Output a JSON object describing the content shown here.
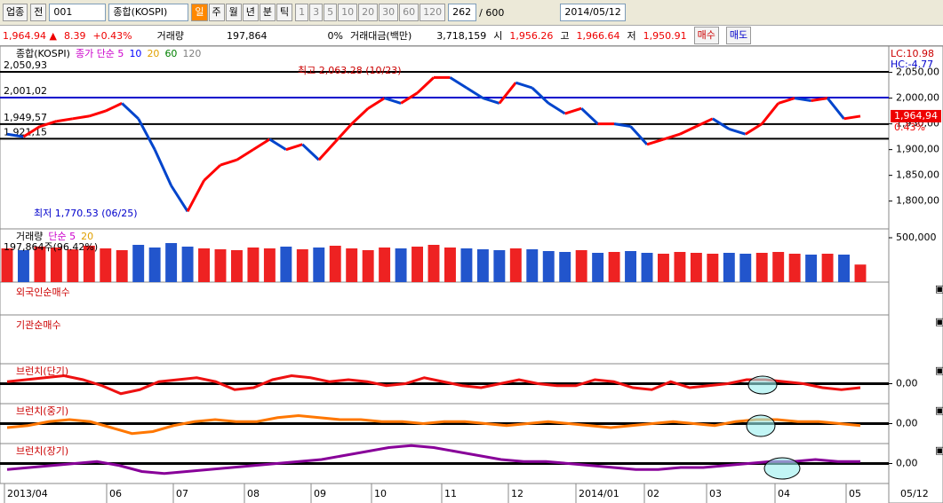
{
  "toolbar": {
    "market": "업종",
    "all": "전",
    "code": "001",
    "name": "종합(KOSPI)",
    "periods": [
      "일",
      "주",
      "월",
      "년",
      "분",
      "틱"
    ],
    "intervals": [
      "1",
      "3",
      "5",
      "10",
      "20",
      "30",
      "60",
      "120"
    ],
    "count": "262",
    "max": "/ 600",
    "date": "2014/05/12"
  },
  "quote": {
    "price": "1,964.94 ▲",
    "change": "8.39",
    "rate": "+0.43%",
    "volume_label": "거래량",
    "volume": "197,864",
    "volume_rate": "0%",
    "amount_label": "거래대금(백만)",
    "amount": "3,718,159",
    "open_label": "시",
    "open": "1,956.26",
    "high_label": "고",
    "high": "1,966.64",
    "low_label": "저",
    "low": "1,950.91",
    "buy": "매수",
    "sell": "매도"
  },
  "date_axis": [
    "2013/04",
    "06",
    "07",
    "08",
    "09",
    "10",
    "11",
    "12",
    "2014/01",
    "02",
    "03",
    "04",
    "05",
    "05/12"
  ],
  "chart_data": [
    {
      "type": "line",
      "title": "종합(KOSPI)",
      "legend": [
        {
          "label": "종가 단순 5",
          "color": "#cc00cc"
        },
        {
          "label": "10",
          "color": "#0000ff"
        },
        {
          "label": "20",
          "color": "#e0a000"
        },
        {
          "label": "60",
          "color": "#008000"
        },
        {
          "label": "120",
          "color": "#808080"
        }
      ],
      "lc": "LC:10.98",
      "hc": "HC:-4.77",
      "last_label": "1,964,94",
      "last_rate": "0.43%",
      "high_note": "최고 2,063.28 (10/23)",
      "low_note": "최저 1,770.53 (06/25)",
      "levels": [
        {
          "value": 2050.93,
          "label": "2,050,93",
          "color": "#000000"
        },
        {
          "value": 2001.02,
          "label": "2,001,02",
          "color": "#0000cc"
        },
        {
          "value": 1949.57,
          "label": "1,949,57",
          "color": "#000000"
        },
        {
          "value": 1921.15,
          "label": "1,921,15",
          "color": "#000000"
        }
      ],
      "values": [
        1930,
        1925,
        1945,
        1955,
        1960,
        1965,
        1975,
        1990,
        1960,
        1900,
        1830,
        1780,
        1840,
        1870,
        1880,
        1900,
        1920,
        1900,
        1910,
        1880,
        1915,
        1950,
        1980,
        2000,
        1990,
        2010,
        2040,
        2040,
        2020,
        2000,
        1990,
        2030,
        2020,
        1990,
        1970,
        1980,
        1950,
        1950,
        1945,
        1910,
        1920,
        1930,
        1945,
        1960,
        1940,
        1930,
        1950,
        1990,
        2000,
        1995,
        2000,
        1960,
        1964.94
      ],
      "ylim": [
        1746,
        2101
      ],
      "yticks": [
        {
          "value": 2050,
          "label": "2,050,00"
        },
        {
          "value": 2000,
          "label": "2,000,00"
        },
        {
          "value": 1950,
          "label": "1,950,00"
        },
        {
          "value": 1900,
          "label": "1,900,00"
        },
        {
          "value": 1850,
          "label": "1,850,00"
        },
        {
          "value": 1800,
          "label": "1,800,00"
        }
      ],
      "up_color": "#ff0000",
      "down_color": "#0044cc"
    },
    {
      "type": "bar",
      "title": "거래량",
      "legend": [
        {
          "label": "단순 5",
          "color": "#cc00cc"
        },
        {
          "label": "20",
          "color": "#e0a000"
        }
      ],
      "last_label": "197,864주(96.42%)",
      "values": [
        380000,
        360000,
        400000,
        390000,
        370000,
        410000,
        380000,
        360000,
        420000,
        390000,
        440000,
        400000,
        380000,
        370000,
        360000,
        390000,
        380000,
        400000,
        370000,
        390000,
        410000,
        380000,
        360000,
        390000,
        380000,
        400000,
        420000,
        390000,
        380000,
        370000,
        360000,
        380000,
        370000,
        350000,
        340000,
        360000,
        330000,
        340000,
        350000,
        330000,
        320000,
        340000,
        330000,
        320000,
        330000,
        320000,
        330000,
        340000,
        320000,
        310000,
        320000,
        310000,
        197864
      ],
      "ylim": [
        0,
        600000
      ],
      "yticks": [
        {
          "value": 500000,
          "label": "500,000"
        }
      ]
    },
    {
      "type": "panel",
      "title": "외국인순매수"
    },
    {
      "type": "panel",
      "title": "기관순매수"
    },
    {
      "type": "line",
      "title": "브런치(단기)",
      "color": "#ee1111",
      "ylim": [
        -1,
        1
      ],
      "yticks": [
        {
          "value": 0,
          "label": "0,00"
        }
      ],
      "values": [
        0.1,
        0.2,
        0.3,
        0.4,
        0.2,
        -0.1,
        -0.5,
        -0.3,
        0.1,
        0.2,
        0.3,
        0.1,
        -0.3,
        -0.2,
        0.2,
        0.4,
        0.3,
        0.1,
        0.2,
        0.1,
        -0.1,
        0.0,
        0.3,
        0.1,
        -0.1,
        -0.2,
        0.0,
        0.2,
        0.0,
        -0.1,
        -0.1,
        0.2,
        0.1,
        -0.2,
        -0.3,
        0.1,
        -0.2,
        -0.1,
        0.0,
        0.2,
        0.2,
        0.1,
        0.0,
        -0.2,
        -0.3,
        -0.2
      ]
    },
    {
      "type": "line",
      "title": "브런치(중기)",
      "color": "#ff7700",
      "ylim": [
        -1,
        1
      ],
      "yticks": [
        {
          "value": 0,
          "label": "0,00"
        }
      ],
      "values": [
        -0.2,
        -0.1,
        0.1,
        0.2,
        0.1,
        -0.2,
        -0.5,
        -0.4,
        -0.1,
        0.1,
        0.2,
        0.1,
        0.1,
        0.3,
        0.4,
        0.3,
        0.2,
        0.2,
        0.1,
        0.1,
        0.0,
        0.1,
        0.1,
        0.0,
        -0.1,
        0.0,
        0.1,
        0.0,
        -0.1,
        -0.2,
        -0.1,
        0.0,
        0.1,
        0.0,
        -0.1,
        0.1,
        0.2,
        0.2,
        0.1,
        0.1,
        0.0,
        -0.1
      ]
    },
    {
      "type": "line",
      "title": "브런치(장기)",
      "color": "#880099",
      "ylim": [
        -1,
        1
      ],
      "yticks": [
        {
          "value": 0,
          "label": "0,00"
        }
      ],
      "values": [
        -0.3,
        -0.2,
        -0.1,
        0.0,
        0.1,
        -0.1,
        -0.4,
        -0.5,
        -0.4,
        -0.3,
        -0.2,
        -0.1,
        0.0,
        0.1,
        0.2,
        0.4,
        0.6,
        0.8,
        0.9,
        0.8,
        0.6,
        0.4,
        0.2,
        0.1,
        0.1,
        0.0,
        -0.1,
        -0.2,
        -0.3,
        -0.3,
        -0.2,
        -0.2,
        -0.1,
        0.0,
        0.1,
        0.1,
        0.2,
        0.1,
        0.1
      ]
    }
  ]
}
